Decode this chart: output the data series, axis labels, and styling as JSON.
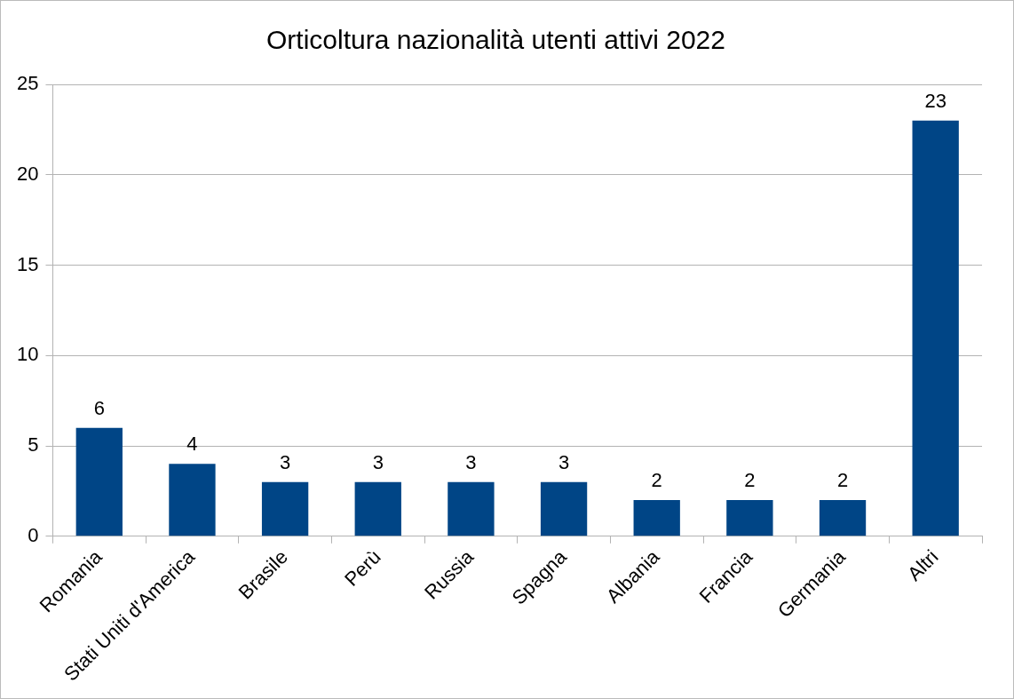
{
  "chart_data": {
    "type": "bar",
    "title": "Orticoltura nazionalità utenti attivi 2022",
    "categories": [
      "Romania",
      "Stati Uniti d'America",
      "Brasile",
      "Perù",
      "Russia",
      "Spagna",
      "Albania",
      "Francia",
      "Germania",
      "Altri"
    ],
    "values": [
      6,
      4,
      3,
      3,
      3,
      3,
      2,
      2,
      2,
      23
    ],
    "color": "#004586",
    "ylim": [
      0,
      25
    ],
    "yticks": [
      0,
      5,
      10,
      15,
      20,
      25
    ],
    "grid": "y",
    "data_labels": true,
    "legend": false
  }
}
